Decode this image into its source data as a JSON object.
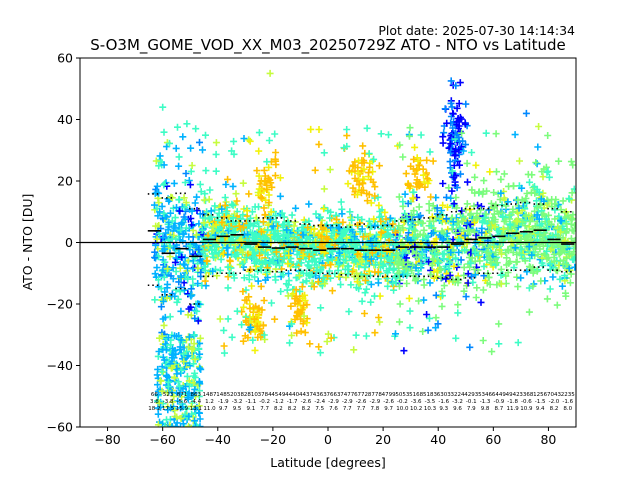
{
  "plot_date": "Plot date: 2025-07-30 14:14:34",
  "chart_data": {
    "type": "scatter",
    "title": "S-O3M_GOME_VOD_XX_M03_20250729Z ATO - NTO vs Latitude",
    "xlabel": "Latitude [degrees]",
    "ylabel": "ATO - NTO [DU]",
    "xlim": [
      -90,
      90
    ],
    "ylim": [
      -60,
      60
    ],
    "xticks": [
      -80,
      -60,
      -40,
      -20,
      0,
      20,
      40,
      60,
      80
    ],
    "yticks": [
      -60,
      -40,
      -20,
      0,
      20,
      40,
      60
    ],
    "grid": false,
    "zero_line": 0,
    "colors": {
      "cyan": "#27f5d6",
      "mint": "#3dfcc5",
      "green": "#7cfc7c",
      "lime": "#c6fc3e",
      "yellow": "#f2f20c",
      "orange": "#ffc000",
      "skyblue": "#00b2ff",
      "midblue": "#0088ff",
      "blue": "#0000ff",
      "black": "#000000"
    },
    "bins": [
      {
        "lat": -63,
        "mean": 3.8,
        "upper": 15.8,
        "lower": -13.9,
        "n": "66",
        "m": "3.8",
        "s": "18.2"
      },
      {
        "lat": -58,
        "mean": -3.5,
        "upper": 14.5,
        "lower": -17.0,
        "n": "523",
        "m": "-3.8",
        "s": "17.5"
      },
      {
        "lat": -53,
        "mean": -2.0,
        "upper": 16.0,
        "lower": -15.0,
        "n": "871",
        "m": "-5.6",
        "s": "15.9"
      },
      {
        "lat": -48,
        "mean": -4.5,
        "upper": 11.0,
        "lower": -20.0,
        "n": "863",
        "m": "-4.4",
        "s": "13.1"
      },
      {
        "lat": -43,
        "mean": 1.0,
        "upper": 9.0,
        "lower": -11.0,
        "n": "1487",
        "m": "1.2",
        "s": "11.0"
      },
      {
        "lat": -38,
        "mean": 2.0,
        "upper": 8.0,
        "lower": -10.0,
        "n": "1485",
        "m": "-1.9",
        "s": "9.7"
      },
      {
        "lat": -33,
        "mean": 2.5,
        "upper": 7.0,
        "lower": -10.0,
        "n": "2038",
        "m": "-3.2",
        "s": "9.5"
      },
      {
        "lat": -28,
        "mean": -0.5,
        "upper": 7.0,
        "lower": -9.0,
        "n": "2810",
        "m": "-1.1",
        "s": "9.1"
      },
      {
        "lat": -23,
        "mean": -1.5,
        "upper": 8.0,
        "lower": -9.0,
        "n": "3784",
        "m": "-0.2",
        "s": "7.7"
      },
      {
        "lat": -18,
        "mean": -1.8,
        "upper": 8.0,
        "lower": -9.5,
        "n": "4549",
        "m": "-1.2",
        "s": "8.2"
      },
      {
        "lat": -13,
        "mean": -1.5,
        "upper": 7.0,
        "lower": -9.0,
        "n": "4440",
        "m": "-1.7",
        "s": "8.2"
      },
      {
        "lat": -8,
        "mean": -2.0,
        "upper": 6.0,
        "lower": -9.0,
        "n": "4437",
        "m": "-2.6",
        "s": "8.2"
      },
      {
        "lat": -3,
        "mean": -2.5,
        "upper": 5.5,
        "lower": -10.0,
        "n": "4363",
        "m": "-2.4",
        "s": "7.5"
      },
      {
        "lat": 2,
        "mean": -2.0,
        "upper": 5.5,
        "lower": -10.0,
        "n": "7663",
        "m": "-2.9",
        "s": "7.6"
      },
      {
        "lat": 7,
        "mean": -2.0,
        "upper": 5.0,
        "lower": -10.5,
        "n": "7477",
        "m": "-2.9",
        "s": "7.7"
      },
      {
        "lat": 12,
        "mean": -2.5,
        "upper": 6.0,
        "lower": -11.0,
        "n": "6772",
        "m": "-2.6",
        "s": "7.7"
      },
      {
        "lat": 17,
        "mean": -2.5,
        "upper": 5.0,
        "lower": -11.0,
        "n": "8778",
        "m": "-2.9",
        "s": "7.8"
      },
      {
        "lat": 22,
        "mean": -2.5,
        "upper": 5.5,
        "lower": -11.0,
        "n": "4799",
        "m": "-2.6",
        "s": "9.7"
      },
      {
        "lat": 27,
        "mean": -1.5,
        "upper": 7.0,
        "lower": -11.0,
        "n": "5053",
        "m": "-0.2",
        "s": "10.0"
      },
      {
        "lat": 32,
        "mean": -1.5,
        "upper": 7.5,
        "lower": -11.0,
        "n": "5168",
        "m": "-3.6",
        "s": "10.2"
      },
      {
        "lat": 37,
        "mean": -1.5,
        "upper": 8.0,
        "lower": -11.0,
        "n": "5183",
        "m": "-3.5",
        "s": "10.3"
      },
      {
        "lat": 42,
        "mean": -1.5,
        "upper": 9.0,
        "lower": -11.5,
        "n": "6303",
        "m": "-1.6",
        "s": "9.3"
      },
      {
        "lat": 47,
        "mean": -0.5,
        "upper": 10.0,
        "lower": -12.0,
        "n": "3224",
        "m": "-3.2",
        "s": "9.6"
      },
      {
        "lat": 52,
        "mean": 1.0,
        "upper": 11.0,
        "lower": -11.5,
        "n": "4293",
        "m": "-0.1",
        "s": "7.9"
      },
      {
        "lat": 57,
        "mean": 1.5,
        "upper": 11.0,
        "lower": -10.0,
        "n": "5346",
        "m": "-1.3",
        "s": "9.8"
      },
      {
        "lat": 62,
        "mean": 2.0,
        "upper": 12.0,
        "lower": -10.0,
        "n": "6449",
        "m": "-0.9",
        "s": "8.7"
      },
      {
        "lat": 67,
        "mean": 3.0,
        "upper": 12.5,
        "lower": -9.0,
        "n": "4942",
        "m": "-1.8",
        "s": "11.9"
      },
      {
        "lat": 72,
        "mean": 3.5,
        "upper": 13.0,
        "lower": -9.0,
        "n": "3368",
        "m": "-0.6",
        "s": "10.9"
      },
      {
        "lat": 77,
        "mean": 4.0,
        "upper": 12.5,
        "lower": -8.0,
        "n": "1256",
        "m": "-1.5",
        "s": "9.4"
      },
      {
        "lat": 82,
        "mean": 1.0,
        "upper": 11.0,
        "lower": -9.0,
        "n": "7043",
        "m": "-2.0",
        "s": "8.2"
      },
      {
        "lat": 87,
        "mean": -0.5,
        "upper": 10.0,
        "lower": -9.5,
        "n": "2235",
        "m": "-1.6",
        "s": "8.0"
      }
    ]
  }
}
